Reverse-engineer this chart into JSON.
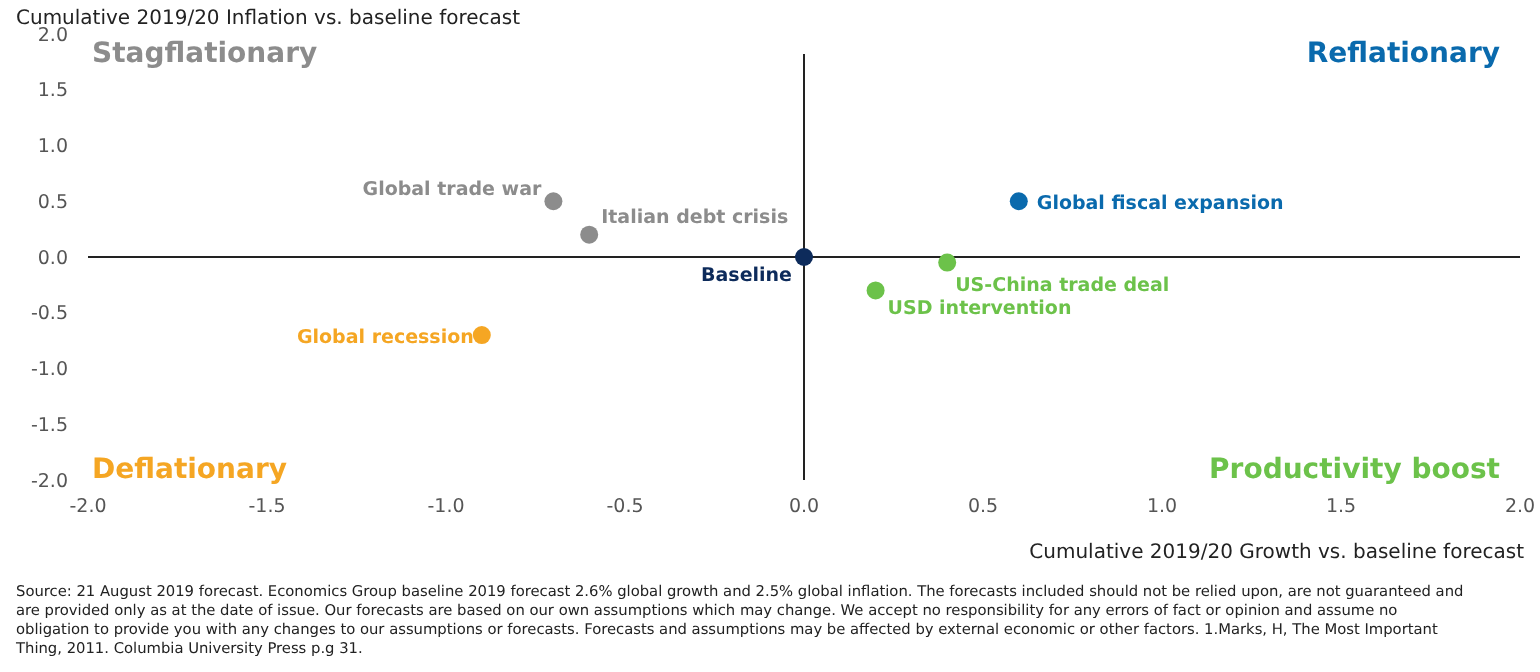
{
  "chart_data": {
    "type": "scatter",
    "title": "Cumulative 2019/20 Inflation vs. baseline forecast",
    "xlabel": "Cumulative 2019/20 Growth vs. baseline forecast",
    "xlim": [
      -2,
      2
    ],
    "xticks": [
      {
        "value": -2,
        "label": "-2.0"
      },
      {
        "value": -1.5,
        "label": "-1.5"
      },
      {
        "value": -1,
        "label": "-1.0"
      },
      {
        "value": -0.5,
        "label": "-0.5"
      },
      {
        "value": 0,
        "label": "0.0"
      },
      {
        "value": 0.5,
        "label": "0.5"
      },
      {
        "value": 1,
        "label": "1.0"
      },
      {
        "value": 1.5,
        "label": "1.5"
      },
      {
        "value": 2,
        "label": "2.0"
      }
    ],
    "ylim": [
      -2,
      2
    ],
    "yticks": [
      {
        "value": -2,
        "label": "-2.0"
      },
      {
        "value": -1.5,
        "label": "-1.5"
      },
      {
        "value": -1,
        "label": "-1.0"
      },
      {
        "value": -0.5,
        "label": "-0.5"
      },
      {
        "value": 0,
        "label": "0.0"
      },
      {
        "value": 0.5,
        "label": "0.5"
      },
      {
        "value": 1,
        "label": "1.0"
      },
      {
        "value": 1.5,
        "label": "1.5"
      },
      {
        "value": 2,
        "label": "2.0"
      }
    ],
    "marker": "circle",
    "series": [
      {
        "name": "Global trade war",
        "color": "#8c8c8c",
        "x": [
          -0.7
        ],
        "values": [
          0.5
        ]
      },
      {
        "name": "Italian debt crisis",
        "color": "#8c8c8c",
        "x": [
          -0.6
        ],
        "values": [
          0.2
        ]
      },
      {
        "name": "Baseline",
        "color": "#0d2b5b",
        "x": [
          0
        ],
        "values": [
          0
        ]
      },
      {
        "name": "Global fiscal expansion",
        "color": "#0a6aad",
        "x": [
          0.6
        ],
        "values": [
          0.5
        ]
      },
      {
        "name": "US-China trade deal",
        "color": "#6cc24a",
        "x": [
          0.4
        ],
        "values": [
          -0.05
        ]
      },
      {
        "name": "USD intervention",
        "color": "#6cc24a",
        "x": [
          0.2
        ],
        "values": [
          -0.3
        ]
      },
      {
        "name": "Global recession",
        "color": "#f5a623",
        "x": [
          -0.9
        ],
        "values": [
          -0.7
        ]
      }
    ],
    "annotations": [
      "Stagflationary",
      "Reflationary",
      "Deflationary",
      "Productivity boost",
      "Source: 21 August 2019 forecast. Economics Group baseline 2019 forecast 2.6% global growth and 2.5% global inflation. The forecasts included should not be relied upon, are not guaranteed and are provided only as at the date of issue.  Our forecasts are based on our own assumptions which may change.  We accept no responsibility for any errors of fact or opinion and assume no obligation to provide you with any changes to our assumptions or forecasts.  Forecasts and assumptions may be affected by external economic or other factors.  1.Marks, H,  The Most Important Thing, 2011. Columbia University Press p.g 31."
    ]
  }
}
